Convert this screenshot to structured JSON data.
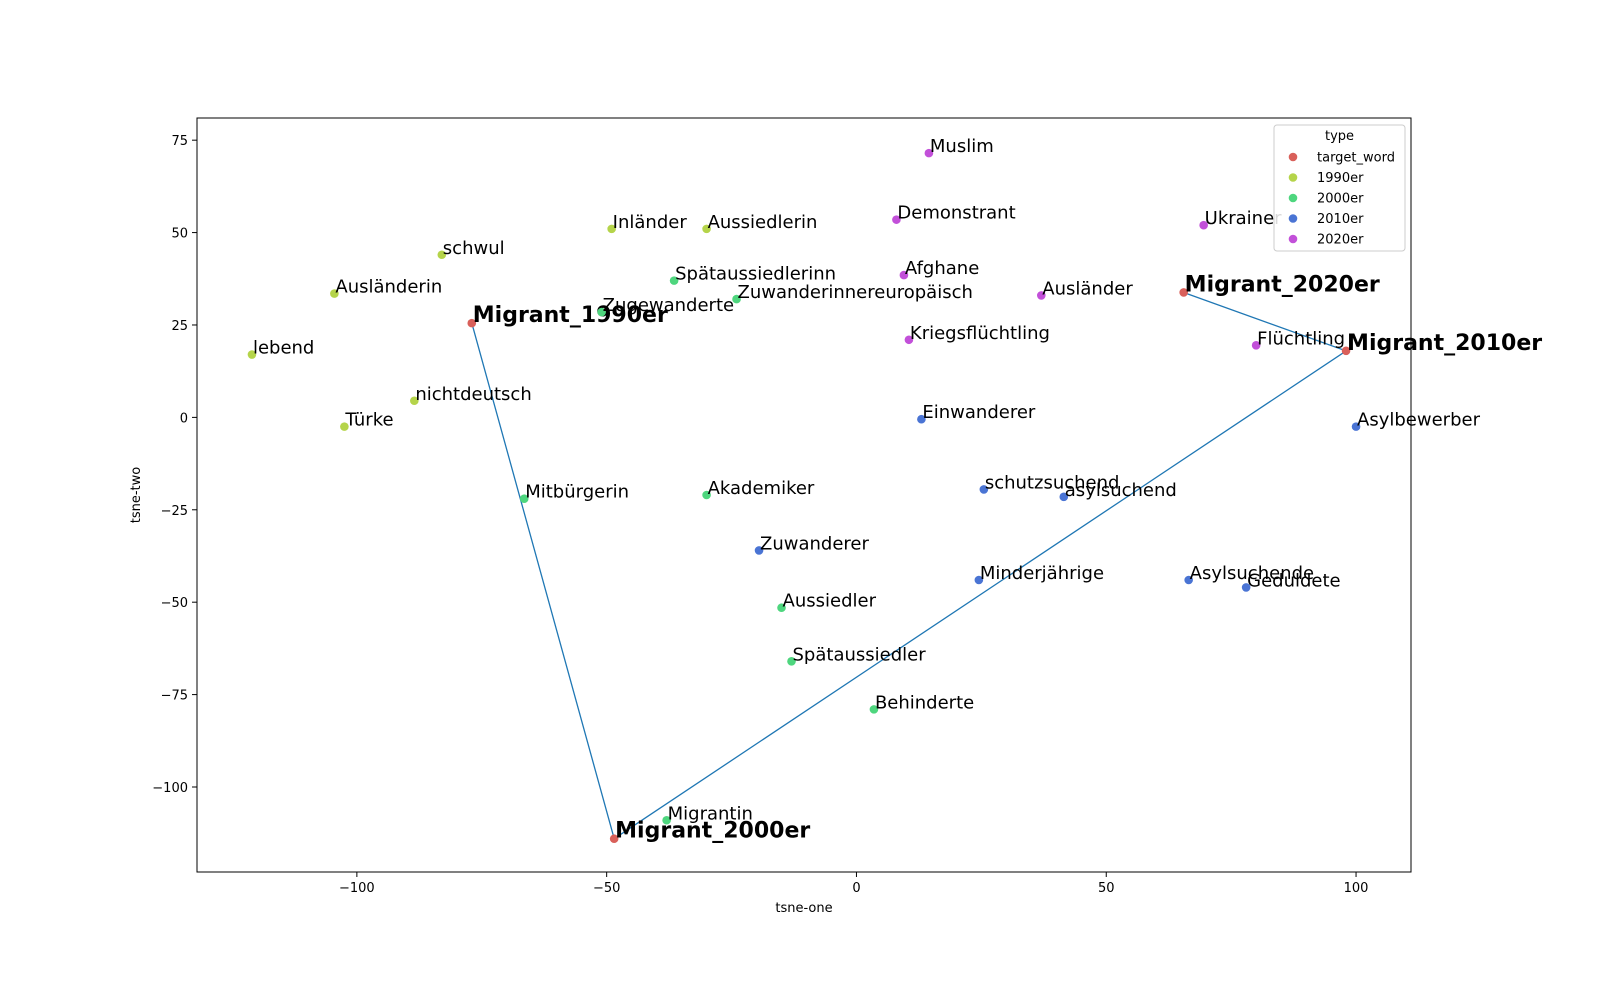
{
  "chart_data": {
    "type": "scatter",
    "xlabel": "tsne-one",
    "ylabel": "tsne-two",
    "xlim": [
      -132,
      111
    ],
    "ylim": [
      -123,
      81
    ],
    "xticks": [
      -100,
      -50,
      0,
      50,
      100
    ],
    "yticks": [
      75,
      50,
      25,
      0,
      -25,
      -50,
      -75,
      -100
    ],
    "xtick_labels": [
      "−100",
      "−50",
      "0",
      "50",
      "100"
    ],
    "ytick_labels": [
      "75",
      "50",
      "25",
      "0",
      "−25",
      "−50",
      "−75",
      "−100"
    ],
    "grid": false,
    "legend": {
      "title": "type",
      "placement": "top-right",
      "entries": [
        {
          "name": "target_word",
          "color": "#d9605a"
        },
        {
          "name": "1990er",
          "color": "#b5d44a"
        },
        {
          "name": "2000er",
          "color": "#4ed67e"
        },
        {
          "name": "2010er",
          "color": "#4a74d4"
        },
        {
          "name": "2020er",
          "color": "#c250d9"
        }
      ]
    },
    "path_color": "#1f77b4",
    "trajectory": [
      "Migrant_1990er",
      "Migrant_2000er",
      "Migrant_2010er",
      "Migrant_2020er"
    ],
    "points": [
      {
        "label": "Migrant_1990er",
        "type": "target_word",
        "x": -77,
        "y": 25.5
      },
      {
        "label": "Migrant_2000er",
        "type": "target_word",
        "x": -48.5,
        "y": -114
      },
      {
        "label": "Migrant_2010er",
        "type": "target_word",
        "x": 98,
        "y": 18
      },
      {
        "label": "Migrant_2020er",
        "type": "target_word",
        "x": 65.5,
        "y": 33.8
      },
      {
        "label": "Inländer",
        "type": "1990er",
        "x": -49,
        "y": 51
      },
      {
        "label": "Aussiedlerin",
        "type": "1990er",
        "x": -30,
        "y": 51
      },
      {
        "label": "schwul",
        "type": "1990er",
        "x": -83,
        "y": 44
      },
      {
        "label": "Ausländerin",
        "type": "1990er",
        "x": -104.5,
        "y": 33.5
      },
      {
        "label": "lebend",
        "type": "1990er",
        "x": -121,
        "y": 17
      },
      {
        "label": "nichtdeutsch",
        "type": "1990er",
        "x": -88.5,
        "y": 4.5
      },
      {
        "label": "Türke",
        "type": "1990er",
        "x": -102.5,
        "y": -2.5
      },
      {
        "label": "Spätaussiedlerinn",
        "type": "2000er",
        "x": -36.5,
        "y": 37
      },
      {
        "label": "Zuwanderinnereuropäisch",
        "type": "2000er",
        "x": -24,
        "y": 32
      },
      {
        "label": "Zugewanderte",
        "type": "2000er",
        "x": -51,
        "y": 28.5
      },
      {
        "label": "Mitbürgerin",
        "type": "2000er",
        "x": -66.5,
        "y": -22
      },
      {
        "label": "Akademiker",
        "type": "2000er",
        "x": -30,
        "y": -21
      },
      {
        "label": "Aussiedler",
        "type": "2000er",
        "x": -15,
        "y": -51.5
      },
      {
        "label": "Spätaussiedler",
        "type": "2000er",
        "x": -13,
        "y": -66
      },
      {
        "label": "Behinderte",
        "type": "2000er",
        "x": 3.5,
        "y": -79
      },
      {
        "label": "Migrantin",
        "type": "2000er",
        "x": -38,
        "y": -109
      },
      {
        "label": "Einwanderer",
        "type": "2010er",
        "x": 13,
        "y": -0.5
      },
      {
        "label": "schutzsuchend",
        "type": "2010er",
        "x": 25.5,
        "y": -19.5
      },
      {
        "label": "asylsuchend",
        "type": "2010er",
        "x": 41.5,
        "y": -21.5
      },
      {
        "label": "Zuwanderer",
        "type": "2010er",
        "x": -19.5,
        "y": -36
      },
      {
        "label": "Minderjährige",
        "type": "2010er",
        "x": 24.5,
        "y": -44
      },
      {
        "label": "Asylsuchende",
        "type": "2010er",
        "x": 66.5,
        "y": -44
      },
      {
        "label": "Geduldete",
        "type": "2010er",
        "x": 78,
        "y": -46
      },
      {
        "label": "Asylbewerber",
        "type": "2010er",
        "x": 100,
        "y": -2.5
      },
      {
        "label": "Muslim",
        "type": "2020er",
        "x": 14.5,
        "y": 71.5
      },
      {
        "label": "Demonstrant",
        "type": "2020er",
        "x": 8,
        "y": 53.5
      },
      {
        "label": "Ukrainer",
        "type": "2020er",
        "x": 69.5,
        "y": 52
      },
      {
        "label": "Afghane",
        "type": "2020er",
        "x": 9.5,
        "y": 38.5
      },
      {
        "label": "Ausländer",
        "type": "2020er",
        "x": 37,
        "y": 33
      },
      {
        "label": "Kriegsflüchtling",
        "type": "2020er",
        "x": 10.5,
        "y": 21
      },
      {
        "label": "Flüchtling",
        "type": "2020er",
        "x": 80,
        "y": 19.5
      }
    ]
  }
}
